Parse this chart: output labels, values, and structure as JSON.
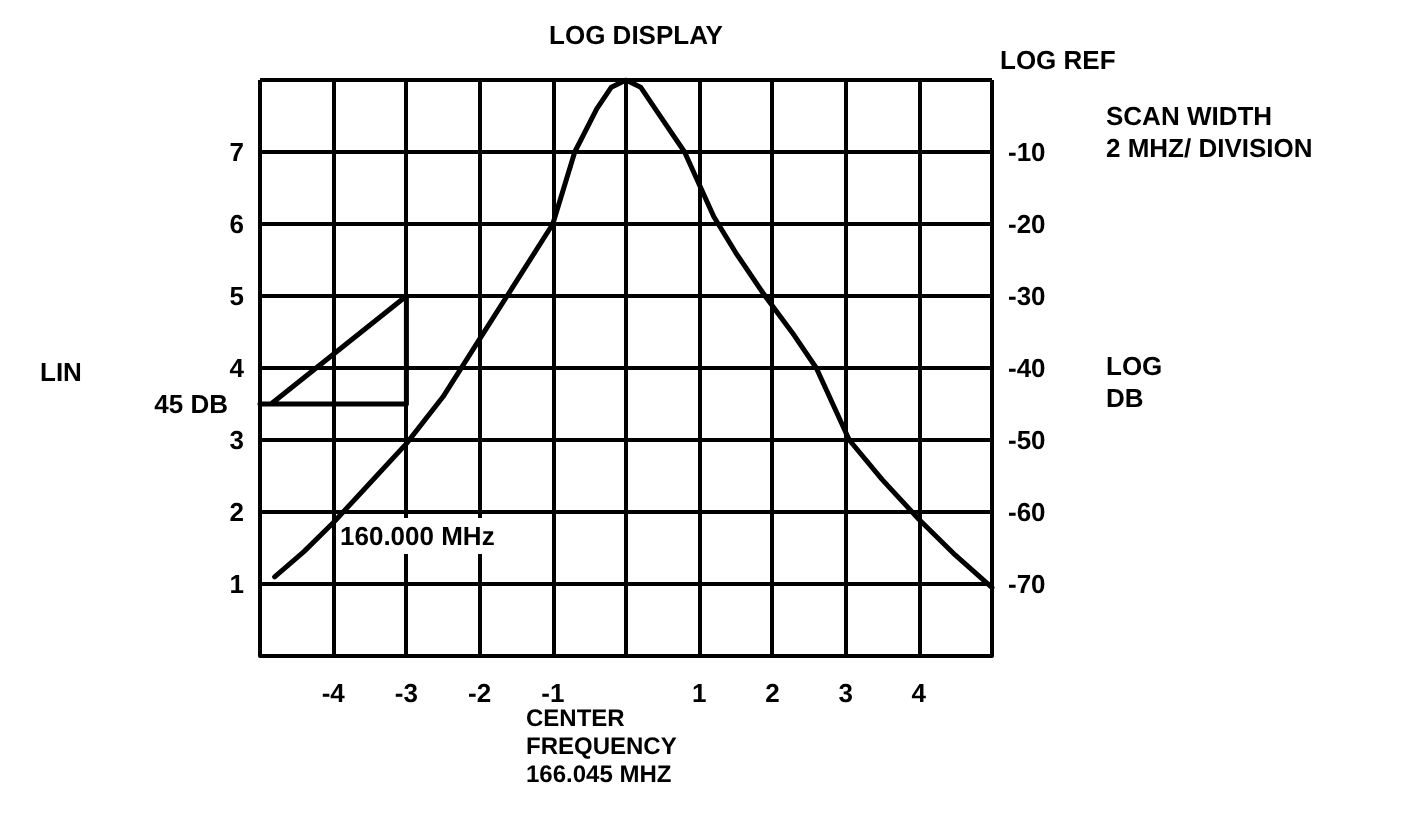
{
  "chart_data": {
    "type": "line",
    "title": "LOG DISPLAY",
    "xlabel": "CENTER\nFREQUENCY\n166.045 MHZ",
    "y2label": "LOG\nDB",
    "annotations": [
      "LOG REF",
      "SCAN WIDTH\n2 MHZ/ DIVISION",
      "LIN",
      "160.000 MHz",
      {
        "text": "45 DB",
        "x": -5,
        "y": 3.5
      }
    ],
    "series": [
      {
        "color": "#000000",
        "x": [
          -4.8,
          -4.4,
          -4,
          -3.5,
          -3,
          -2.5,
          -2,
          -1.5,
          -1,
          -0.7,
          -0.4,
          -0.2,
          0,
          0.2,
          0.4,
          0.8,
          1.2,
          1.5,
          1.9,
          2.3,
          2.6,
          3.05,
          3.5,
          4,
          4.5,
          5
        ],
        "values": [
          1.1,
          1.45,
          1.85,
          2.4,
          2.95,
          3.6,
          4.4,
          5.2,
          6.0,
          7.0,
          7.6,
          7.9,
          8.0,
          7.9,
          7.6,
          7.0,
          6.1,
          5.6,
          5.0,
          4.45,
          4.0,
          3.0,
          2.45,
          1.9,
          1.4,
          0.95
        ]
      },
      {
        "color": "#000000",
        "x": [
          -5,
          -4.85,
          -3,
          -3,
          -4.85
        ],
        "values": [
          3.5,
          3.5,
          5,
          3.5,
          3.5
        ]
      }
    ],
    "xlim": [
      -5,
      5
    ],
    "xticks": [
      {
        "value": -5,
        "label": null
      },
      -4,
      -3,
      -2,
      -1,
      {
        "value": 0,
        "label": null
      },
      1,
      2,
      3,
      4,
      {
        "value": 5,
        "label": null
      }
    ],
    "ylim": [
      0,
      8
    ],
    "yticks": [
      {
        "value": 0,
        "label": null
      },
      1,
      2,
      3,
      4,
      5,
      6,
      7,
      {
        "value": 8,
        "label": null
      }
    ],
    "y2lim": [
      -80,
      0
    ],
    "y2ticks": [
      -70,
      -60,
      -50,
      -40,
      -30,
      -20,
      -10
    ],
    "grid": true,
    "marker": "none",
    "line_style": "solid"
  }
}
